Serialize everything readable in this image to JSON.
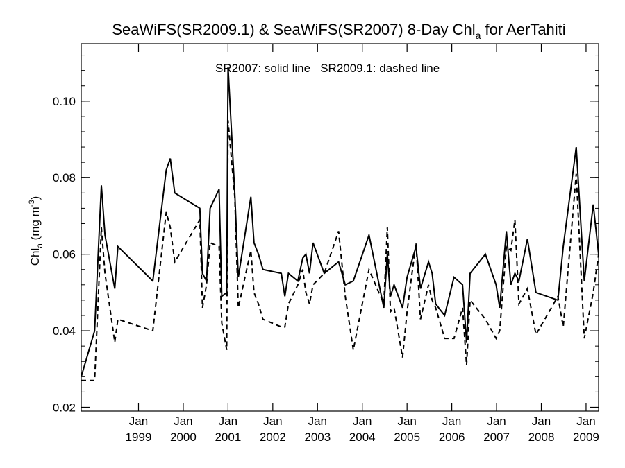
{
  "chart_data": {
    "type": "line",
    "title": "SeaWiFS(SR2009.1) & SeaWiFS(SR2007) 8-Day Chl",
    "title_sub": "a",
    "title_suffix": " for AerTahiti",
    "ylabel_main": "Chl",
    "ylabel_sub": "a",
    "ylabel_unit": " (mg m",
    "ylabel_sup": "-3",
    "ylabel_close": ")",
    "annotation": "SR2007: solid line   SR2009.1: dashed line",
    "xlim": [
      1997.72,
      2009.28
    ],
    "ylim": [
      0.019,
      0.115
    ],
    "y_ticks": [
      0.02,
      0.04,
      0.06,
      0.08,
      0.1
    ],
    "y_tick_labels": [
      "0.02",
      "0.04",
      "0.06",
      "0.08",
      "0.10"
    ],
    "x_ticks": [
      1999,
      2000,
      2001,
      2002,
      2003,
      2004,
      2005,
      2006,
      2007,
      2008,
      2009
    ],
    "x_tick_month": "Jan",
    "x_tick_years": [
      "1999",
      "2000",
      "2001",
      "2002",
      "2003",
      "2004",
      "2005",
      "2006",
      "2007",
      "2008",
      "2009"
    ],
    "series": [
      {
        "name": "SR2007",
        "style": "solid",
        "points": [
          [
            1997.72,
            0.028
          ],
          [
            1998.02,
            0.04
          ],
          [
            1998.17,
            0.078
          ],
          [
            1998.25,
            0.065
          ],
          [
            1998.47,
            0.051
          ],
          [
            1998.54,
            0.062
          ],
          [
            1999.32,
            0.053
          ],
          [
            1999.62,
            0.082
          ],
          [
            1999.71,
            0.085
          ],
          [
            1999.81,
            0.076
          ],
          [
            2000.37,
            0.072
          ],
          [
            2000.43,
            0.055
          ],
          [
            2000.52,
            0.053
          ],
          [
            2000.6,
            0.072
          ],
          [
            2000.8,
            0.077
          ],
          [
            2000.86,
            0.049
          ],
          [
            2000.97,
            0.05
          ],
          [
            2001.0,
            0.109
          ],
          [
            2001.15,
            0.076
          ],
          [
            2001.23,
            0.054
          ],
          [
            2001.51,
            0.075
          ],
          [
            2001.58,
            0.063
          ],
          [
            2001.68,
            0.06
          ],
          [
            2001.78,
            0.056
          ],
          [
            2002.19,
            0.055
          ],
          [
            2002.27,
            0.049
          ],
          [
            2002.35,
            0.055
          ],
          [
            2002.56,
            0.053
          ],
          [
            2002.67,
            0.059
          ],
          [
            2002.74,
            0.06
          ],
          [
            2002.82,
            0.055
          ],
          [
            2002.9,
            0.063
          ],
          [
            2003.15,
            0.055
          ],
          [
            2003.47,
            0.058
          ],
          [
            2003.62,
            0.052
          ],
          [
            2003.8,
            0.053
          ],
          [
            2004.15,
            0.065
          ],
          [
            2004.48,
            0.046
          ],
          [
            2004.56,
            0.06
          ],
          [
            2004.63,
            0.049
          ],
          [
            2004.71,
            0.052
          ],
          [
            2004.9,
            0.046
          ],
          [
            2005.0,
            0.054
          ],
          [
            2005.2,
            0.062
          ],
          [
            2005.3,
            0.051
          ],
          [
            2005.48,
            0.058
          ],
          [
            2005.56,
            0.055
          ],
          [
            2005.64,
            0.047
          ],
          [
            2005.84,
            0.044
          ],
          [
            2006.05,
            0.054
          ],
          [
            2006.24,
            0.052
          ],
          [
            2006.33,
            0.037
          ],
          [
            2006.41,
            0.055
          ],
          [
            2006.75,
            0.06
          ],
          [
            2006.99,
            0.052
          ],
          [
            2007.07,
            0.046
          ],
          [
            2007.22,
            0.066
          ],
          [
            2007.32,
            0.052
          ],
          [
            2007.41,
            0.055
          ],
          [
            2007.5,
            0.053
          ],
          [
            2007.69,
            0.064
          ],
          [
            2007.88,
            0.05
          ],
          [
            2008.37,
            0.048
          ],
          [
            2008.49,
            0.062
          ],
          [
            2008.78,
            0.088
          ],
          [
            2008.96,
            0.053
          ],
          [
            2009.16,
            0.073
          ],
          [
            2009.28,
            0.06
          ]
        ]
      },
      {
        "name": "SR2009.1",
        "style": "dashed",
        "points": [
          [
            1997.72,
            0.027
          ],
          [
            1998.02,
            0.027
          ],
          [
            1998.17,
            0.067
          ],
          [
            1998.25,
            0.055
          ],
          [
            1998.47,
            0.037
          ],
          [
            1998.54,
            0.043
          ],
          [
            1999.32,
            0.04
          ],
          [
            1999.62,
            0.071
          ],
          [
            1999.71,
            0.067
          ],
          [
            1999.81,
            0.058
          ],
          [
            2000.37,
            0.069
          ],
          [
            2000.43,
            0.046
          ],
          [
            2000.52,
            0.052
          ],
          [
            2000.6,
            0.063
          ],
          [
            2000.8,
            0.062
          ],
          [
            2000.86,
            0.042
          ],
          [
            2000.97,
            0.035
          ],
          [
            2001.0,
            0.095
          ],
          [
            2001.15,
            0.075
          ],
          [
            2001.23,
            0.046
          ],
          [
            2001.51,
            0.061
          ],
          [
            2001.58,
            0.05
          ],
          [
            2001.68,
            0.047
          ],
          [
            2001.78,
            0.043
          ],
          [
            2002.19,
            0.041
          ],
          [
            2002.27,
            0.041
          ],
          [
            2002.35,
            0.047
          ],
          [
            2002.56,
            0.052
          ],
          [
            2002.67,
            0.056
          ],
          [
            2002.74,
            0.05
          ],
          [
            2002.82,
            0.047
          ],
          [
            2002.9,
            0.052
          ],
          [
            2003.15,
            0.055
          ],
          [
            2003.47,
            0.066
          ],
          [
            2003.62,
            0.049
          ],
          [
            2003.8,
            0.035
          ],
          [
            2004.15,
            0.056
          ],
          [
            2004.48,
            0.047
          ],
          [
            2004.56,
            0.067
          ],
          [
            2004.63,
            0.045
          ],
          [
            2004.71,
            0.046
          ],
          [
            2004.9,
            0.033
          ],
          [
            2005.0,
            0.045
          ],
          [
            2005.2,
            0.063
          ],
          [
            2005.3,
            0.043
          ],
          [
            2005.48,
            0.052
          ],
          [
            2005.56,
            0.048
          ],
          [
            2005.64,
            0.046
          ],
          [
            2005.84,
            0.038
          ],
          [
            2006.05,
            0.038
          ],
          [
            2006.24,
            0.046
          ],
          [
            2006.33,
            0.031
          ],
          [
            2006.41,
            0.048
          ],
          [
            2006.75,
            0.043
          ],
          [
            2006.99,
            0.038
          ],
          [
            2007.07,
            0.04
          ],
          [
            2007.22,
            0.062
          ],
          [
            2007.32,
            0.061
          ],
          [
            2007.41,
            0.069
          ],
          [
            2007.5,
            0.047
          ],
          [
            2007.69,
            0.051
          ],
          [
            2007.88,
            0.039
          ],
          [
            2008.37,
            0.049
          ],
          [
            2008.49,
            0.041
          ],
          [
            2008.78,
            0.081
          ],
          [
            2008.96,
            0.038
          ],
          [
            2009.16,
            0.05
          ],
          [
            2009.28,
            0.06
          ]
        ]
      }
    ]
  }
}
